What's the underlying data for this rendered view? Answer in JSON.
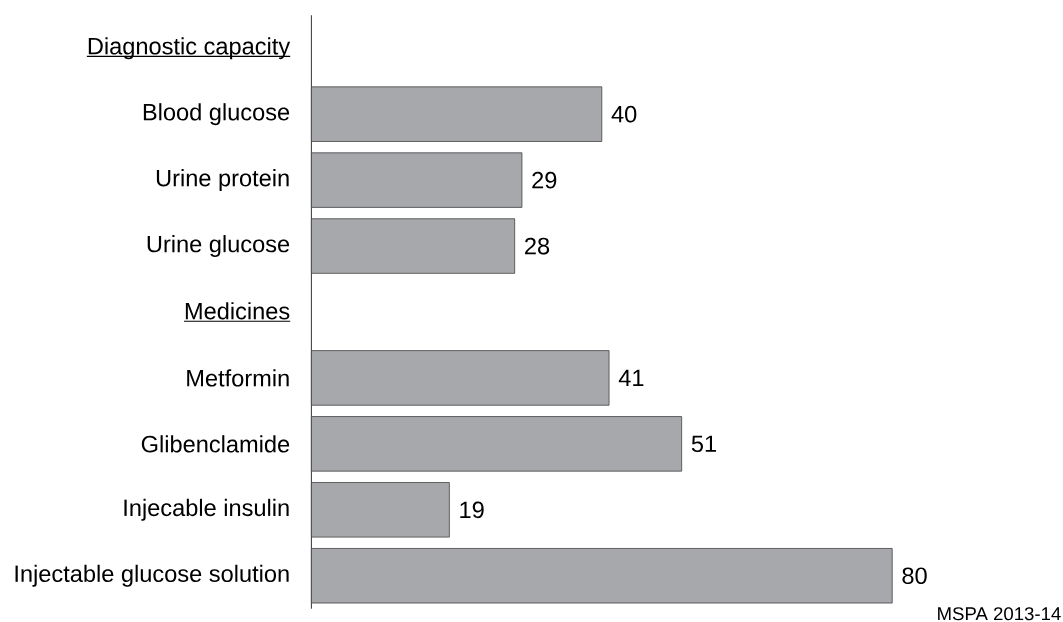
{
  "chart_data": {
    "type": "bar",
    "orientation": "horizontal",
    "categories": [
      "Diagnostic capacity",
      "Blood glucose",
      "Urine protein",
      "Urine glucose",
      "Medicines",
      "Metformin",
      "Glibenclamide",
      "Injecable insulin",
      "Injectable glucose solution"
    ],
    "values": [
      null,
      40,
      29,
      28,
      null,
      41,
      51,
      19,
      80
    ],
    "color": "#a7a8ab",
    "data_labels": true,
    "annotations": [
      "MSPA 2013-14"
    ]
  }
}
